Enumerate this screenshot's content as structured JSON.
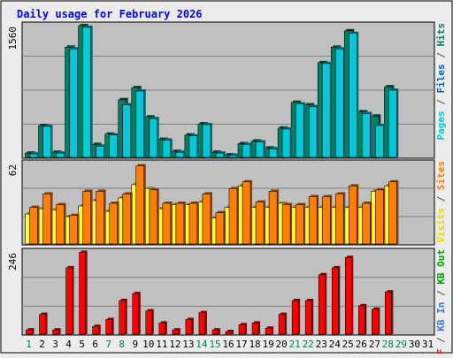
{
  "chart_data": {
    "type": "bar",
    "title": "Daily usage for February 2026",
    "x": [
      "1",
      "2",
      "3",
      "4",
      "5",
      "6",
      "7",
      "8",
      "9",
      "10",
      "11",
      "12",
      "13",
      "14",
      "15",
      "16",
      "17",
      "18",
      "19",
      "20",
      "21",
      "22",
      "23",
      "24",
      "25",
      "26",
      "27",
      "28",
      "29",
      "30",
      "31"
    ],
    "weekend_days": [
      "1",
      "7",
      "8",
      "14",
      "15",
      "21",
      "22",
      "28",
      "29"
    ],
    "grid": true,
    "panels": [
      {
        "max_label": "1560",
        "right_label": [
          {
            "text": "Pages",
            "color": "#00c8d8"
          },
          {
            "text": " / ",
            "color": "#505050"
          },
          {
            "text": "Files",
            "color": "#0060c0"
          },
          {
            "text": " / ",
            "color": "#505050"
          },
          {
            "text": "Hits",
            "color": "#008060"
          }
        ],
        "ymax": 1560,
        "series": [
          {
            "name": "Hits",
            "color": "#008060",
            "values": [
              60,
              380,
              70,
              1290,
              1540,
              160,
              280,
              680,
              820,
              480,
              220,
              80,
              270,
              400,
              70,
              40,
              170,
              200,
              120,
              350,
              650,
              620,
              1110,
              1290,
              1480,
              540,
              490,
              830,
              0,
              0,
              0
            ]
          },
          {
            "name": "Files",
            "color": "#00c8d8",
            "values": [
              50,
              370,
              60,
              1270,
              1520,
              140,
              270,
              620,
              780,
              460,
              210,
              70,
              260,
              390,
              60,
              35,
              160,
              190,
              110,
              340,
              630,
              600,
              1100,
              1270,
              1450,
              520,
              380,
              790,
              0,
              0,
              0
            ]
          }
        ]
      },
      {
        "max_label": "62",
        "right_label": [
          {
            "text": "Visits",
            "color": "#e8d800"
          },
          {
            "text": " / ",
            "color": "#505050"
          },
          {
            "text": "Sites",
            "color": "#ff8000"
          }
        ],
        "ymax": 62,
        "series": [
          {
            "name": "Visits",
            "color": "#ffff40",
            "values": [
              23,
              27,
              26,
              21,
              29,
              33,
              25,
              35,
              45,
              42,
              27,
              30,
              30,
              32,
              20,
              28,
              44,
              28,
              28,
              31,
              28,
              28,
              28,
              28,
              28,
              28,
              40,
              44,
              0,
              0,
              0
            ]
          },
          {
            "name": "Sites",
            "color": "#ff8000",
            "values": [
              28,
              38,
              30,
              22,
              40,
              40,
              31,
              38,
              59,
              41,
              31,
              31,
              31,
              38,
              24,
              42,
              47,
              32,
              40,
              30,
              30,
              36,
              36,
              38,
              44,
              31,
              41,
              47,
              0,
              0,
              0
            ]
          }
        ]
      },
      {
        "max_label": "246",
        "right_label": [
          {
            "text": "KB F",
            "color": "#ff0000"
          },
          {
            "text": " / ",
            "color": "#505050"
          },
          {
            "text": "KB In",
            "color": "#3a7fd0"
          },
          {
            "text": " / ",
            "color": "#505050"
          },
          {
            "text": "KB Out",
            "color": "#00a000"
          }
        ],
        "ymax": 246,
        "series": [
          {
            "name": "KB F",
            "color": "#ff0000",
            "values": [
              15,
              60,
              15,
              195,
              240,
              25,
              45,
              100,
              120,
              70,
              35,
              15,
              45,
              65,
              15,
              10,
              30,
              35,
              20,
              60,
              100,
              100,
              175,
              195,
              225,
              85,
              75,
              125,
              0,
              0,
              0
            ]
          }
        ]
      }
    ]
  }
}
